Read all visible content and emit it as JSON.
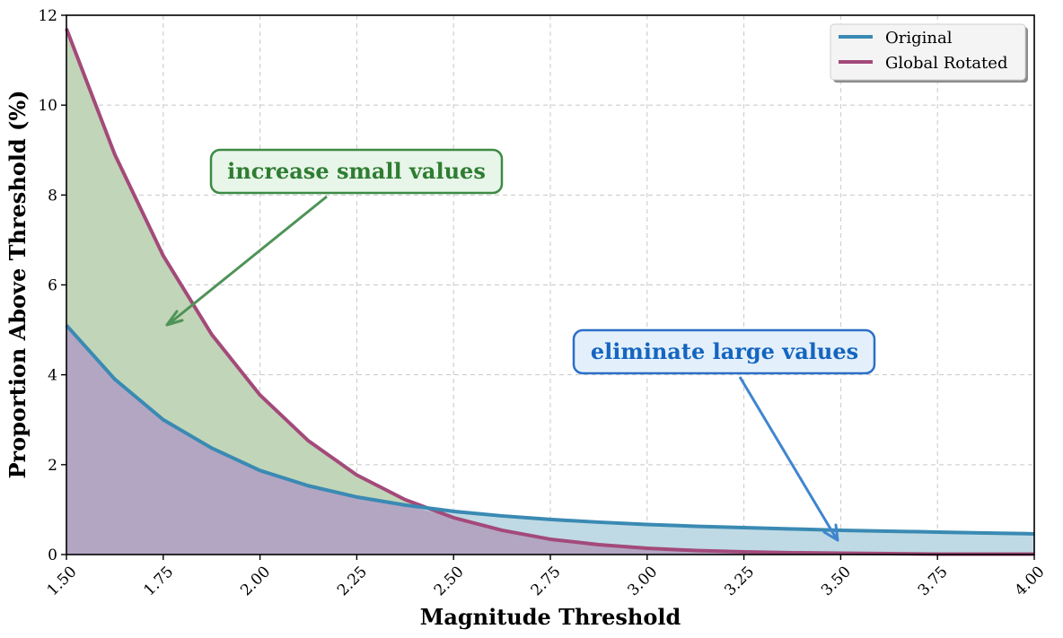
{
  "chart_data": {
    "type": "area",
    "title": "",
    "xlabel": "Magnitude Threshold",
    "ylabel": "Proportion Above Threshold (%)",
    "xlim": [
      1.5,
      4.0
    ],
    "ylim": [
      0,
      12
    ],
    "xticks": [
      "1.50",
      "1.75",
      "2.00",
      "2.25",
      "2.50",
      "2.75",
      "3.00",
      "3.25",
      "3.50",
      "3.75",
      "4.00"
    ],
    "yticks": [
      "0",
      "2",
      "4",
      "6",
      "8",
      "10",
      "12"
    ],
    "grid": true,
    "legend_position": "top-right",
    "x": [
      1.5,
      1.625,
      1.75,
      1.875,
      2.0,
      2.125,
      2.25,
      2.375,
      2.5,
      2.625,
      2.75,
      2.875,
      3.0,
      3.125,
      3.25,
      3.375,
      3.5,
      3.625,
      3.75,
      3.875,
      4.0
    ],
    "series": [
      {
        "name": "Original",
        "color": "#3a8ab3",
        "fill": "#bfdae4",
        "values": [
          5.1,
          3.9,
          3.0,
          2.37,
          1.87,
          1.53,
          1.28,
          1.1,
          0.96,
          0.86,
          0.78,
          0.72,
          0.67,
          0.63,
          0.6,
          0.57,
          0.54,
          0.52,
          0.5,
          0.48,
          0.46
        ]
      },
      {
        "name": "Global Rotated",
        "color": "#a34a7a",
        "fill": "#c1d5b8",
        "values": [
          11.7,
          8.9,
          6.65,
          4.9,
          3.55,
          2.53,
          1.77,
          1.22,
          0.82,
          0.54,
          0.34,
          0.22,
          0.14,
          0.09,
          0.06,
          0.04,
          0.03,
          0.02,
          0.01,
          0.01,
          0.01
        ]
      }
    ],
    "overlap_fill": "#b3a6c3",
    "annotations": [
      {
        "text": "increase small values",
        "text_color": "#2e7d32",
        "box_fill": "#e8f5e9",
        "box_edge": "#3d8a44",
        "arrow_color": "#4e9358",
        "anchor": "text-x 2.25 / 8.5, arrow to 1.75 / 5.05"
      },
      {
        "text": "eliminate large values",
        "text_color": "#1565c0",
        "box_fill": "#e3f0fb",
        "box_edge": "#2b6fc6",
        "arrow_color": "#3f85cf",
        "anchor": "text-x 3.2 / 4.5, arrow to 3.5 / 0.25"
      }
    ]
  }
}
